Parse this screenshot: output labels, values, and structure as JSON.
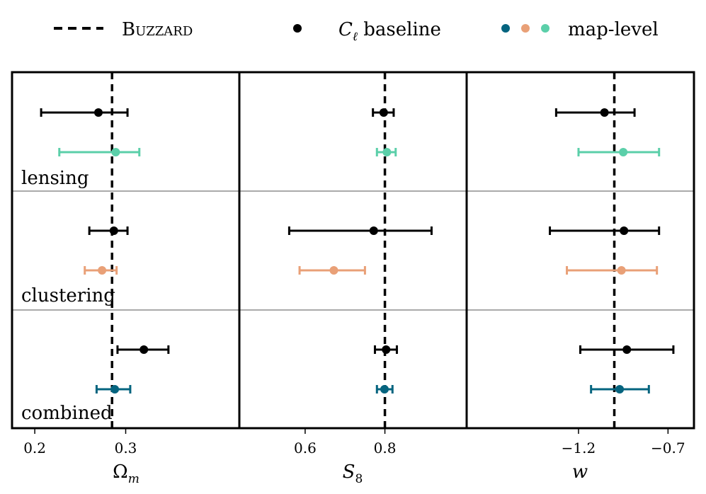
{
  "legend": {
    "truth_label": "Buzzard",
    "baseline_label_symbol": "C",
    "baseline_label_sub": "ℓ",
    "baseline_label_rest": " baseline",
    "maplevel_label": "map-level",
    "maplevel_dot_colors": [
      "#05647f",
      "#e9a077",
      "#5bcfa9"
    ]
  },
  "rows": [
    "lensing",
    "clustering",
    "combined"
  ],
  "colors": {
    "baseline": "#000000",
    "lensing": "#5bcfa9",
    "clustering": "#e9a077",
    "combined": "#05647f",
    "frame": "#000000",
    "row_divider": "#555555"
  },
  "chart_data": [
    {
      "type": "scatter",
      "title": "",
      "xlabel_main": "Ω",
      "xlabel_sub": "m",
      "xlim": [
        0.175,
        0.425
      ],
      "ticks": [
        0.2,
        0.3
      ],
      "tick_labels": [
        "0.2",
        "0.3"
      ],
      "truth": 0.285,
      "points": [
        {
          "row": "lensing",
          "series": "baseline",
          "value": 0.27,
          "low": 0.207,
          "high": 0.302
        },
        {
          "row": "lensing",
          "series": "map-level",
          "value": 0.289,
          "low": 0.227,
          "high": 0.315
        },
        {
          "row": "clustering",
          "series": "baseline",
          "value": 0.287,
          "low": 0.26,
          "high": 0.302
        },
        {
          "row": "clustering",
          "series": "map-level",
          "value": 0.274,
          "low": 0.255,
          "high": 0.29
        },
        {
          "row": "combined",
          "series": "baseline",
          "value": 0.32,
          "low": 0.291,
          "high": 0.347
        },
        {
          "row": "combined",
          "series": "map-level",
          "value": 0.288,
          "low": 0.268,
          "high": 0.305
        }
      ]
    },
    {
      "type": "scatter",
      "title": "",
      "xlabel_main": "S",
      "xlabel_sub": "8",
      "xlim": [
        0.435,
        1.005
      ],
      "ticks": [
        0.6,
        0.8
      ],
      "tick_labels": [
        "0.6",
        "0.8"
      ],
      "truth": 0.8,
      "points": [
        {
          "row": "lensing",
          "series": "baseline",
          "value": 0.797,
          "low": 0.77,
          "high": 0.822
        },
        {
          "row": "lensing",
          "series": "map-level",
          "value": 0.805,
          "low": 0.78,
          "high": 0.827
        },
        {
          "row": "clustering",
          "series": "baseline",
          "value": 0.772,
          "low": 0.56,
          "high": 0.917
        },
        {
          "row": "clustering",
          "series": "map-level",
          "value": 0.672,
          "low": 0.586,
          "high": 0.75
        },
        {
          "row": "combined",
          "series": "baseline",
          "value": 0.803,
          "low": 0.775,
          "high": 0.83
        },
        {
          "row": "combined",
          "series": "map-level",
          "value": 0.799,
          "low": 0.78,
          "high": 0.819
        }
      ]
    },
    {
      "type": "scatter",
      "title": "",
      "xlabel_main": "w",
      "xlabel_sub": "",
      "xlim": [
        -1.825,
        -0.555
      ],
      "ticks": [
        -1.2,
        -0.7
      ],
      "tick_labels": [
        "−1.2",
        "−0.7"
      ],
      "truth": -1.0,
      "points": [
        {
          "row": "lensing",
          "series": "baseline",
          "value": -1.055,
          "low": -1.325,
          "high": -0.887
        },
        {
          "row": "lensing",
          "series": "map-level",
          "value": -0.95,
          "low": -1.2,
          "high": -0.75
        },
        {
          "row": "clustering",
          "series": "baseline",
          "value": -0.946,
          "low": -1.36,
          "high": -0.75
        },
        {
          "row": "clustering",
          "series": "map-level",
          "value": -0.96,
          "low": -1.265,
          "high": -0.762
        },
        {
          "row": "combined",
          "series": "baseline",
          "value": -0.93,
          "low": -1.19,
          "high": -0.67
        },
        {
          "row": "combined",
          "series": "map-level",
          "value": -0.97,
          "low": -1.13,
          "high": -0.807
        }
      ]
    }
  ]
}
